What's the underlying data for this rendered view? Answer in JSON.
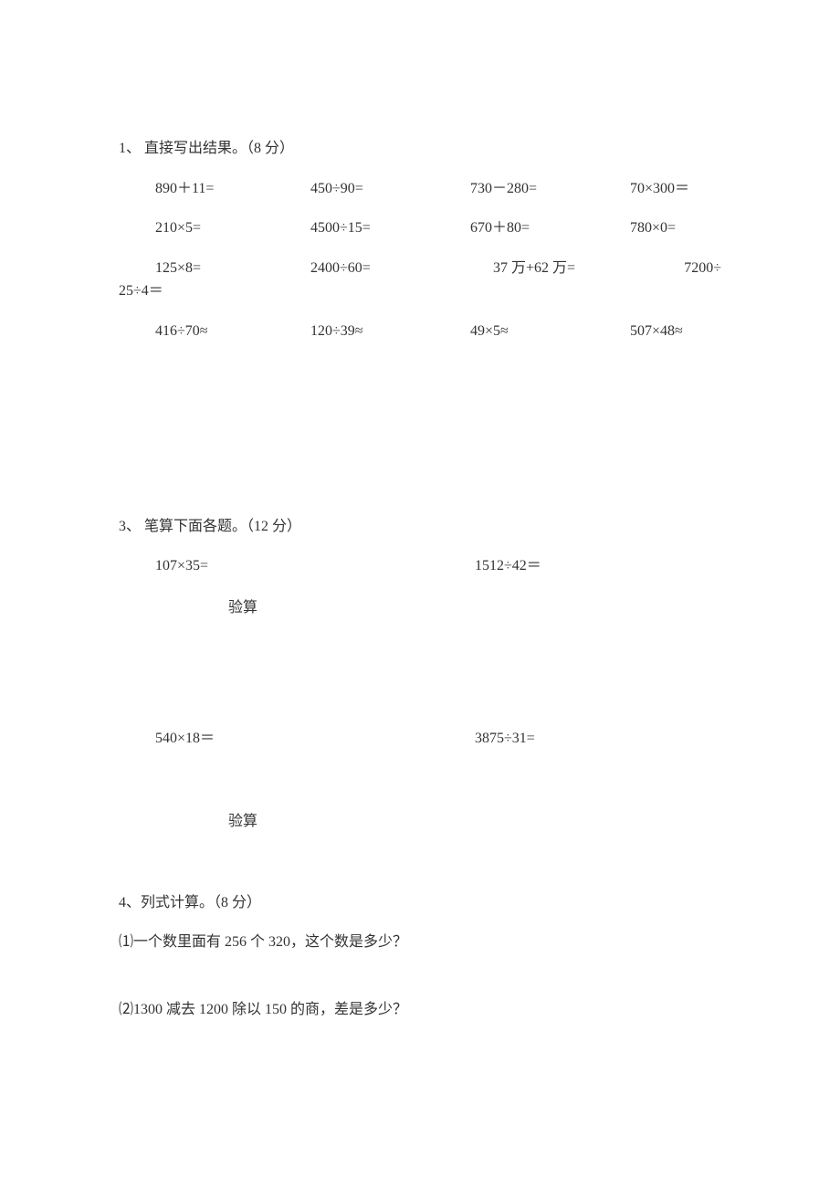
{
  "section1": {
    "title": "1、 直接写出结果。（8 分）",
    "rows": [
      [
        "890＋11=",
        "450÷90=",
        "730－280=",
        "70×300＝"
      ],
      [
        "210×5=",
        "4500÷15=",
        "670＋80=",
        "780×0="
      ]
    ],
    "wrapRow": {
      "c1": "125×8=",
      "c2": "2400÷60=",
      "c3": "37 万+62 万=",
      "c4": "7200÷",
      "line2": "25÷4＝"
    },
    "row4": [
      "416÷70≈",
      "120÷39≈",
      "49×5≈",
      "507×48≈"
    ]
  },
  "section3": {
    "title": "3、 笔算下面各题。（12 分）",
    "pair1": {
      "left": "107×35=",
      "right": "1512÷42＝"
    },
    "verify1": "验算",
    "pair2": {
      "left": "540×18＝",
      "right": "3875÷31="
    },
    "verify2": "验算"
  },
  "section4": {
    "title": "4、列式计算。（8 分）",
    "q1": "⑴一个数里面有 256 个 320，这个数是多少？",
    "q2": "⑵1300 减去 1200 除以 150 的商，差是多少？"
  }
}
